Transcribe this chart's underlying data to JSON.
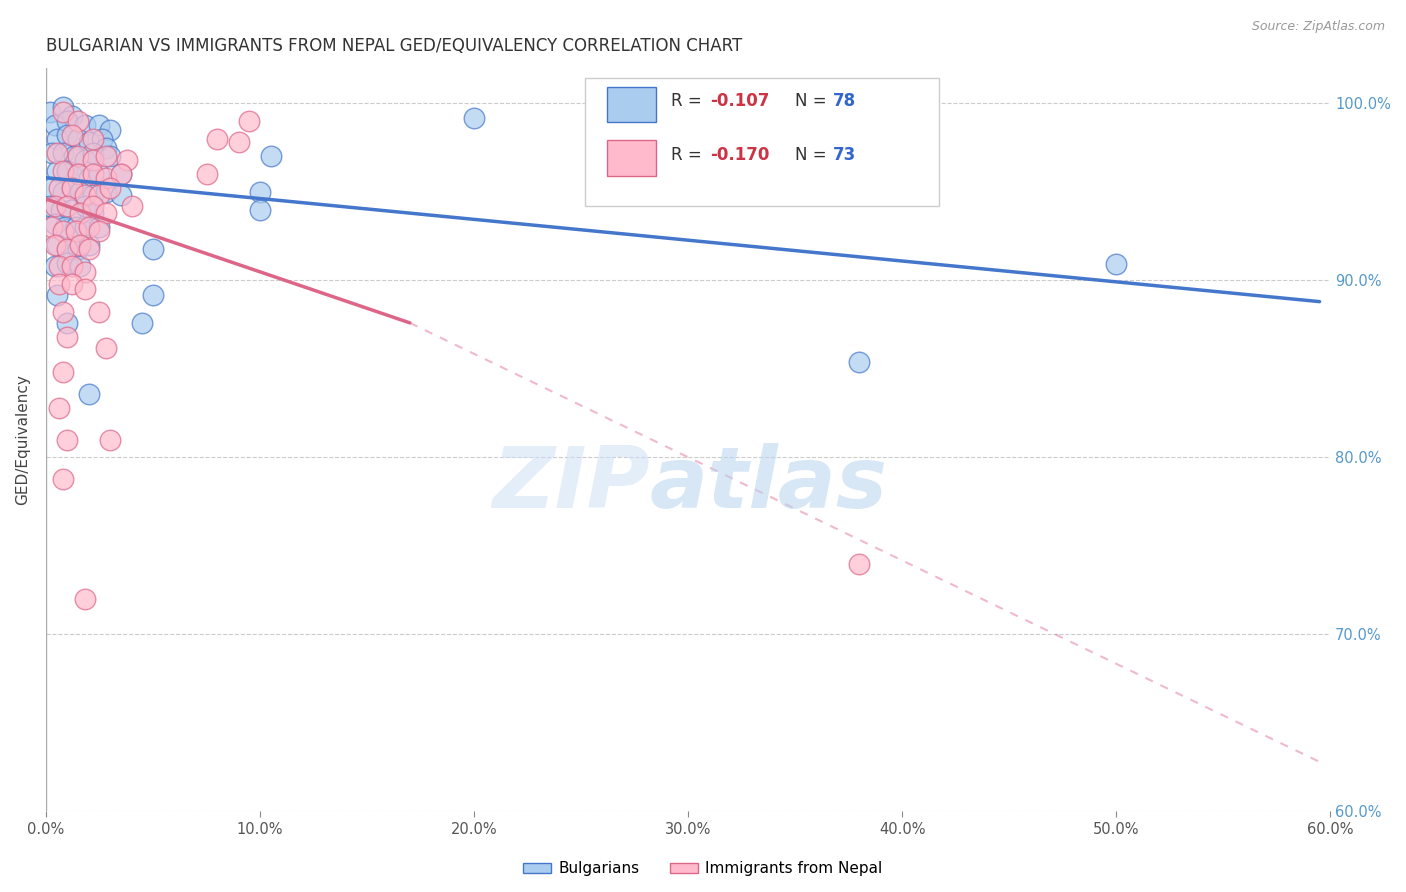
{
  "title": "BULGARIAN VS IMMIGRANTS FROM NEPAL GED/EQUIVALENCY CORRELATION CHART",
  "source": "Source: ZipAtlas.com",
  "ylabel": "GED/Equivalency",
  "xlim": [
    0.0,
    0.6
  ],
  "ylim": [
    0.6,
    1.02
  ],
  "yticks": [
    0.6,
    0.7,
    0.8,
    0.9,
    1.0
  ],
  "xticks": [
    0.0,
    0.1,
    0.2,
    0.3,
    0.4,
    0.5,
    0.6
  ],
  "legend_r_label_1": "R = -0.107",
  "legend_n_label_1": "N = 78",
  "legend_r_label_2": "R = -0.170",
  "legend_n_label_2": "N = 73",
  "blue_scatter": [
    [
      0.002,
      0.995
    ],
    [
      0.008,
      0.998
    ],
    [
      0.012,
      0.993
    ],
    [
      0.004,
      0.988
    ],
    [
      0.01,
      0.99
    ],
    [
      0.018,
      0.988
    ],
    [
      0.025,
      0.988
    ],
    [
      0.03,
      0.985
    ],
    [
      0.005,
      0.98
    ],
    [
      0.01,
      0.982
    ],
    [
      0.015,
      0.98
    ],
    [
      0.02,
      0.978
    ],
    [
      0.026,
      0.98
    ],
    [
      0.028,
      0.975
    ],
    [
      0.003,
      0.972
    ],
    [
      0.008,
      0.972
    ],
    [
      0.013,
      0.97
    ],
    [
      0.018,
      0.968
    ],
    [
      0.022,
      0.972
    ],
    [
      0.03,
      0.97
    ],
    [
      0.005,
      0.962
    ],
    [
      0.01,
      0.962
    ],
    [
      0.015,
      0.96
    ],
    [
      0.02,
      0.958
    ],
    [
      0.025,
      0.96
    ],
    [
      0.035,
      0.96
    ],
    [
      0.003,
      0.952
    ],
    [
      0.008,
      0.95
    ],
    [
      0.012,
      0.952
    ],
    [
      0.016,
      0.95
    ],
    [
      0.022,
      0.948
    ],
    [
      0.028,
      0.95
    ],
    [
      0.035,
      0.948
    ],
    [
      0.002,
      0.942
    ],
    [
      0.007,
      0.94
    ],
    [
      0.012,
      0.94
    ],
    [
      0.018,
      0.942
    ],
    [
      0.022,
      0.938
    ],
    [
      0.004,
      0.932
    ],
    [
      0.009,
      0.93
    ],
    [
      0.014,
      0.93
    ],
    [
      0.018,
      0.93
    ],
    [
      0.025,
      0.93
    ],
    [
      0.005,
      0.92
    ],
    [
      0.01,
      0.918
    ],
    [
      0.015,
      0.918
    ],
    [
      0.02,
      0.92
    ],
    [
      0.05,
      0.918
    ],
    [
      0.004,
      0.908
    ],
    [
      0.01,
      0.91
    ],
    [
      0.016,
      0.908
    ],
    [
      0.005,
      0.892
    ],
    [
      0.05,
      0.892
    ],
    [
      0.01,
      0.876
    ],
    [
      0.045,
      0.876
    ],
    [
      0.2,
      0.992
    ],
    [
      0.105,
      0.97
    ],
    [
      0.1,
      0.95
    ],
    [
      0.1,
      0.94
    ],
    [
      0.5,
      0.909
    ],
    [
      0.38,
      0.854
    ],
    [
      0.02,
      0.836
    ]
  ],
  "pink_scatter": [
    [
      0.008,
      0.995
    ],
    [
      0.015,
      0.99
    ],
    [
      0.012,
      0.982
    ],
    [
      0.022,
      0.98
    ],
    [
      0.005,
      0.972
    ],
    [
      0.015,
      0.97
    ],
    [
      0.022,
      0.968
    ],
    [
      0.028,
      0.97
    ],
    [
      0.038,
      0.968
    ],
    [
      0.008,
      0.962
    ],
    [
      0.015,
      0.96
    ],
    [
      0.022,
      0.96
    ],
    [
      0.028,
      0.958
    ],
    [
      0.035,
      0.96
    ],
    [
      0.006,
      0.952
    ],
    [
      0.012,
      0.952
    ],
    [
      0.018,
      0.948
    ],
    [
      0.025,
      0.948
    ],
    [
      0.03,
      0.952
    ],
    [
      0.004,
      0.942
    ],
    [
      0.01,
      0.942
    ],
    [
      0.016,
      0.938
    ],
    [
      0.022,
      0.942
    ],
    [
      0.028,
      0.938
    ],
    [
      0.04,
      0.942
    ],
    [
      0.003,
      0.93
    ],
    [
      0.008,
      0.928
    ],
    [
      0.014,
      0.928
    ],
    [
      0.02,
      0.93
    ],
    [
      0.025,
      0.928
    ],
    [
      0.004,
      0.92
    ],
    [
      0.01,
      0.918
    ],
    [
      0.016,
      0.92
    ],
    [
      0.02,
      0.918
    ],
    [
      0.006,
      0.908
    ],
    [
      0.012,
      0.908
    ],
    [
      0.018,
      0.905
    ],
    [
      0.006,
      0.898
    ],
    [
      0.012,
      0.898
    ],
    [
      0.018,
      0.895
    ],
    [
      0.008,
      0.882
    ],
    [
      0.025,
      0.882
    ],
    [
      0.01,
      0.868
    ],
    [
      0.028,
      0.862
    ],
    [
      0.008,
      0.848
    ],
    [
      0.006,
      0.828
    ],
    [
      0.01,
      0.81
    ],
    [
      0.03,
      0.81
    ],
    [
      0.008,
      0.788
    ],
    [
      0.095,
      0.99
    ],
    [
      0.08,
      0.98
    ],
    [
      0.09,
      0.978
    ],
    [
      0.075,
      0.96
    ],
    [
      0.38,
      0.74
    ],
    [
      0.018,
      0.72
    ]
  ],
  "blue_line": {
    "x0": 0.0,
    "y0": 0.958,
    "x1": 0.595,
    "y1": 0.888
  },
  "pink_line_solid": {
    "x0": 0.0,
    "y0": 0.946,
    "x1": 0.17,
    "y1": 0.876
  },
  "pink_line_dashed": {
    "x0": 0.17,
    "y0": 0.876,
    "x1": 0.595,
    "y1": 0.628
  },
  "blue_color": "#4477cc",
  "pink_color": "#dd6688",
  "blue_fill": "#aaccee",
  "pink_fill": "#ffbbcc",
  "watermark_zip": "ZIP",
  "watermark_atlas": "atlas",
  "bg_color": "#ffffff",
  "grid_color": "#cccccc",
  "title_color": "#333333",
  "right_axis_color": "#5599cc",
  "right_ytick_labels": [
    "60.0%",
    "70.0%",
    "80.0%",
    "90.0%",
    "100.0%"
  ],
  "legend_text_r_color": "#cc3344",
  "legend_text_n_color": "#3366cc",
  "bottom_label_1": "Bulgarians",
  "bottom_label_2": "Immigrants from Nepal"
}
